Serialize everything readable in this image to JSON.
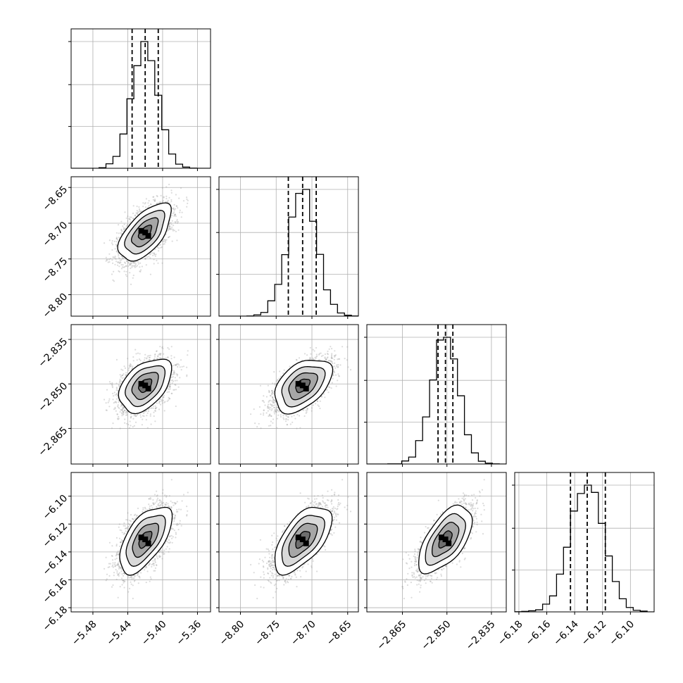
{
  "chart_data": {
    "type": "corner",
    "title": "",
    "variables": [
      {
        "range": [
          -5.505,
          -5.345
        ],
        "ticks": [
          -5.48,
          -5.44,
          -5.4,
          -5.36
        ],
        "tick_labels": [
          "−5.48",
          "−5.44",
          "−5.40",
          "−5.36"
        ],
        "quantiles": [
          -5.435,
          -5.42,
          -5.405
        ],
        "std": 0.015
      },
      {
        "range": [
          -8.83,
          -8.635
        ],
        "ticks": [
          -8.8,
          -8.75,
          -8.7,
          -8.65
        ],
        "tick_labels": [
          "−8.80",
          "−8.75",
          "−8.70",
          "−8.65"
        ],
        "quantiles": [
          -8.733,
          -8.713,
          -8.694
        ],
        "std": 0.02
      },
      {
        "range": [
          -2.877,
          -2.83
        ],
        "ticks": [
          -2.865,
          -2.85,
          -2.835
        ],
        "tick_labels": [
          "−2.865",
          "−2.850",
          "−2.835"
        ],
        "quantiles": [
          -2.853,
          -2.8505,
          -2.848
        ],
        "std": 0.0045
      },
      {
        "range": [
          -6.183,
          -6.083
        ],
        "ticks": [
          -6.18,
          -6.16,
          -6.14,
          -6.12,
          -6.1
        ],
        "tick_labels": [
          "−6.18",
          "−6.16",
          "−6.14",
          "−6.12",
          "−6.10"
        ],
        "quantiles": [
          -6.143,
          -6.131,
          -6.118
        ],
        "std": 0.012
      }
    ],
    "correlations": [
      [
        1.0,
        0.6,
        0.45,
        0.6
      ],
      [
        0.6,
        1.0,
        0.45,
        0.6
      ],
      [
        0.45,
        0.45,
        1.0,
        0.6
      ],
      [
        0.6,
        0.6,
        0.6,
        1.0
      ]
    ],
    "histogram_bins": 20,
    "quantile_line_style": "dashed",
    "grid": true,
    "contour_levels": [
      0.5,
      1.0,
      1.5,
      2.0
    ]
  }
}
